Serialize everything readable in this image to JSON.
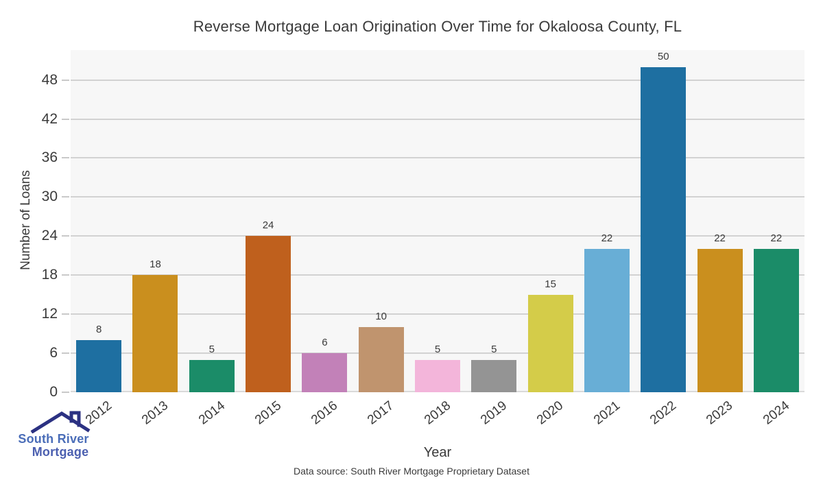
{
  "footer": "Data source: South River Mortgage Proprietary Dataset",
  "logo": {
    "line1": "South River",
    "line2": "Mortgage",
    "line1_color": "#4a6db8",
    "line2_color": "#4b5fb0",
    "roof_color": "#2b3182",
    "roof_icon": "house-roof"
  },
  "chart_data": {
    "type": "bar",
    "title": "Reverse Mortgage Loan Origination Over Time for Okaloosa County, FL",
    "xlabel": "Year",
    "ylabel": "Number of Loans",
    "categories": [
      "2012",
      "2013",
      "2014",
      "2015",
      "2016",
      "2017",
      "2018",
      "2019",
      "2020",
      "2021",
      "2022",
      "2023",
      "2024"
    ],
    "values": [
      8,
      18,
      5,
      24,
      6,
      10,
      5,
      5,
      15,
      22,
      50,
      22,
      22
    ],
    "bar_colors": [
      "#1e6fa1",
      "#ca8f1e",
      "#1b8c68",
      "#bf601d",
      "#c281b8",
      "#c0946e",
      "#f3b5da",
      "#949494",
      "#d4cc49",
      "#68aed6",
      "#1e6fa1",
      "#ca8f1e",
      "#1b8c68"
    ],
    "yticks": [
      0,
      6,
      12,
      18,
      24,
      30,
      36,
      42,
      48
    ],
    "ylim": [
      0,
      52.6
    ],
    "grid": "horizontal",
    "legend": "none",
    "plot_bg_color": "#f7f7f7",
    "grid_color": "#d2d2d2",
    "spine_color": "#d9d9d9",
    "tick_color": "#c9c9c9",
    "text_color": "#3a3a3a"
  }
}
